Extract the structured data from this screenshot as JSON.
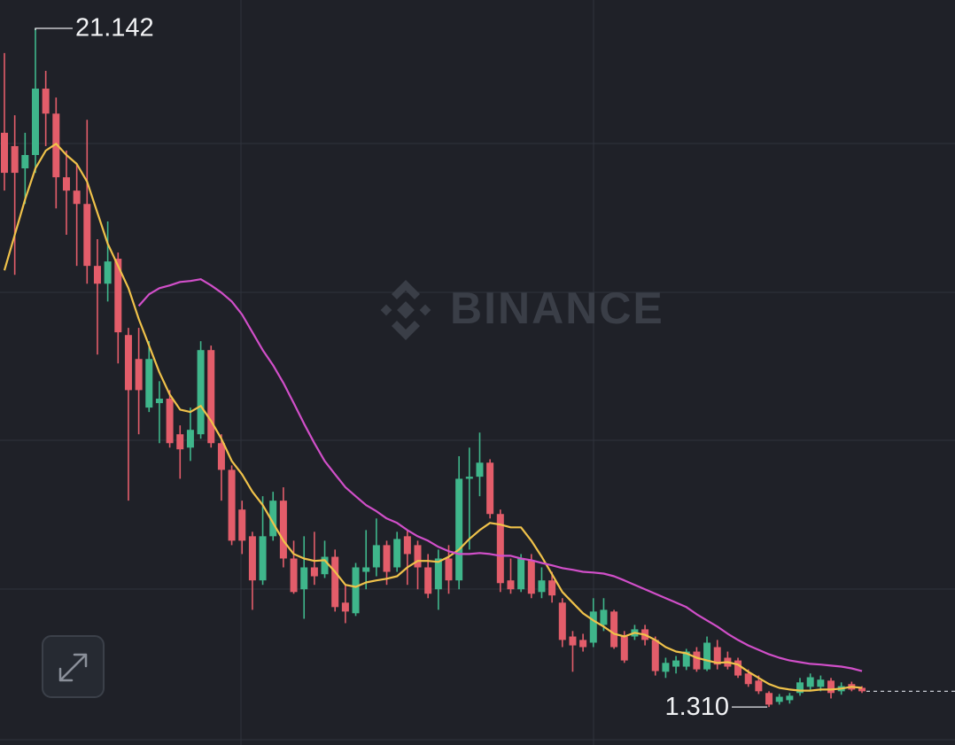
{
  "chart_data": {
    "type": "candlestick",
    "watermark": "BINANCE",
    "ylim": [
      0.2,
      21.97
    ],
    "up_color": "#3fb68b",
    "down_color": "#e35d6a",
    "open": [
      18.09,
      17.7,
      17.05,
      17.44,
      19.38,
      18.65,
      16.79,
      16.4,
      16.01,
      14.2,
      13.68,
      14.41,
      12.18,
      11.48,
      10.06,
      10.19,
      10.32,
      9.28,
      8.89,
      9.28,
      11.74,
      9.02,
      8.24,
      7.08,
      6.3,
      5.01,
      6.3,
      7.34,
      5.65,
      4.75,
      5.39,
      5.19,
      5.7,
      4.36,
      4.05,
      5.26,
      5.39,
      6.04,
      5.39,
      6.3,
      6.04,
      5.39,
      4.75,
      5.65,
      5.01,
      7.98,
      8.04,
      8.45,
      6.95,
      5.01,
      4.75,
      5.6,
      4.67,
      5.01,
      4.36,
      3.37,
      3.27,
      3.19,
      3.71,
      4.1,
      3.37,
      3.37,
      3.58,
      3.27,
      2.34,
      2.49,
      2.49,
      2.93,
      2.41,
      3.06,
      2.75,
      2.67,
      2.29,
      2.08,
      1.72,
      1.46,
      1.51,
      1.72,
      1.9,
      1.9,
      2.08,
      1.77,
      1.98,
      1.87
    ],
    "close": [
      16.92,
      16.92,
      17.44,
      19.38,
      18.65,
      16.79,
      16.4,
      16.01,
      14.2,
      13.68,
      14.33,
      12.26,
      10.57,
      10.57,
      11.48,
      10.32,
      9.02,
      8.84,
      9.41,
      11.74,
      9.02,
      8.24,
      6.17,
      6.17,
      5.01,
      6.3,
      7.34,
      5.65,
      4.67,
      5.39,
      5.13,
      5.7,
      4.23,
      4.1,
      5.39,
      5.39,
      6.04,
      5.26,
      6.22,
      5.78,
      5.39,
      4.62,
      5.65,
      5.01,
      7.98,
      8.04,
      8.45,
      6.95,
      4.93,
      4.75,
      5.65,
      4.62,
      5.01,
      4.57,
      3.27,
      3.11,
      3.06,
      4.1,
      4.15,
      3.06,
      2.67,
      3.58,
      3.27,
      2.36,
      2.6,
      2.67,
      2.93,
      2.41,
      3.19,
      2.55,
      2.49,
      2.23,
      1.98,
      1.77,
      1.38,
      1.61,
      1.64,
      2.03,
      2.18,
      2.11,
      1.72,
      1.92,
      1.82,
      1.77
    ],
    "high": [
      20.42,
      18.6,
      18.09,
      21.142,
      19.9,
      19.12,
      17.57,
      17.18,
      18.47,
      14.98,
      15.5,
      14.59,
      12.39,
      12.39,
      12.0,
      10.83,
      10.57,
      9.54,
      10.06,
      12.0,
      11.87,
      9.28,
      8.37,
      7.34,
      6.43,
      7.47,
      7.6,
      7.73,
      6.17,
      6.3,
      6.43,
      6.17,
      5.91,
      4.88,
      5.52,
      6.48,
      6.82,
      6.17,
      6.43,
      6.48,
      6.17,
      5.78,
      5.91,
      6.04,
      8.64,
      8.89,
      9.33,
      8.55,
      7.08,
      5.65,
      5.78,
      5.78,
      5.39,
      5.26,
      4.49,
      3.53,
      3.45,
      4.49,
      4.49,
      4.15,
      3.53,
      3.71,
      3.71,
      3.37,
      2.75,
      2.8,
      3.01,
      3.06,
      3.37,
      3.27,
      2.93,
      2.75,
      2.41,
      2.23,
      1.77,
      1.69,
      1.72,
      2.16,
      2.29,
      2.23,
      2.16,
      2.03,
      2.05,
      1.92
    ],
    "low": [
      16.4,
      13.94,
      16.01,
      16.92,
      17.7,
      15.88,
      15.11,
      14.2,
      13.68,
      11.61,
      13.16,
      11.35,
      7.34,
      9.28,
      9.93,
      9.02,
      8.89,
      7.98,
      8.5,
      9.15,
      8.89,
      7.34,
      6.04,
      5.78,
      4.15,
      4.88,
      6.17,
      5.39,
      4.62,
      3.89,
      4.88,
      5.08,
      4.1,
      3.76,
      3.97,
      4.75,
      5.13,
      4.88,
      5.26,
      4.88,
      4.75,
      4.49,
      4.15,
      4.62,
      4.75,
      5.91,
      7.47,
      6.82,
      4.67,
      4.62,
      4.67,
      4.49,
      4.49,
      4.36,
      3.06,
      2.34,
      2.93,
      3.06,
      3.53,
      3.01,
      2.6,
      3.27,
      3.11,
      2.23,
      2.16,
      2.29,
      2.39,
      2.34,
      2.36,
      2.41,
      2.41,
      2.16,
      1.9,
      1.69,
      1.31,
      1.38,
      1.41,
      1.64,
      1.82,
      1.77,
      1.56,
      1.67,
      1.77,
      1.72
    ],
    "moving_averages": [
      {
        "color": "#f0c24a",
        "values": [
          14.07,
          15.11,
          16.14,
          17.05,
          17.57,
          17.77,
          17.44,
          17.18,
          16.66,
          15.75,
          14.85,
          14.2,
          13.55,
          12.65,
          11.87,
          11.09,
          10.44,
          10.0,
          9.93,
          10.11,
          9.67,
          9.15,
          8.5,
          8.11,
          7.6,
          7.21,
          6.69,
          6.17,
          5.78,
          5.65,
          5.58,
          5.6,
          5.26,
          4.88,
          4.82,
          4.95,
          5.01,
          5.06,
          5.13,
          5.39,
          5.58,
          5.58,
          5.55,
          5.7,
          5.91,
          6.22,
          6.48,
          6.69,
          6.64,
          6.56,
          6.56,
          6.17,
          5.7,
          5.19,
          4.67,
          4.36,
          4.05,
          3.84,
          3.66,
          3.45,
          3.37,
          3.48,
          3.42,
          3.27,
          3.06,
          2.93,
          2.88,
          2.75,
          2.67,
          2.6,
          2.62,
          2.55,
          2.34,
          2.16,
          1.98,
          1.87,
          1.82,
          1.79,
          1.79,
          1.82,
          1.82,
          1.85,
          1.9,
          1.87
        ]
      },
      {
        "color": "#d14fc9",
        "values": [
          null,
          null,
          null,
          null,
          null,
          null,
          null,
          null,
          null,
          null,
          null,
          null,
          null,
          13.03,
          13.37,
          13.55,
          13.63,
          13.73,
          13.76,
          13.81,
          13.63,
          13.42,
          13.16,
          12.78,
          12.26,
          11.74,
          11.3,
          10.78,
          10.19,
          9.59,
          9.02,
          8.5,
          8.11,
          7.73,
          7.47,
          7.21,
          7.03,
          6.82,
          6.69,
          6.48,
          6.3,
          6.17,
          5.99,
          5.86,
          5.78,
          5.78,
          5.81,
          5.78,
          5.73,
          5.73,
          5.65,
          5.6,
          5.52,
          5.45,
          5.37,
          5.32,
          5.26,
          5.24,
          5.21,
          5.13,
          5.01,
          4.88,
          4.75,
          4.62,
          4.49,
          4.36,
          4.23,
          4.02,
          3.84,
          3.66,
          3.45,
          3.27,
          3.11,
          2.98,
          2.85,
          2.75,
          2.67,
          2.62,
          2.57,
          2.55,
          2.52,
          2.49,
          2.44,
          2.36
        ]
      }
    ],
    "annotations": [
      {
        "value": 21.142,
        "label": "21.142"
      },
      {
        "value": 1.31,
        "label": "1.310"
      }
    ]
  }
}
